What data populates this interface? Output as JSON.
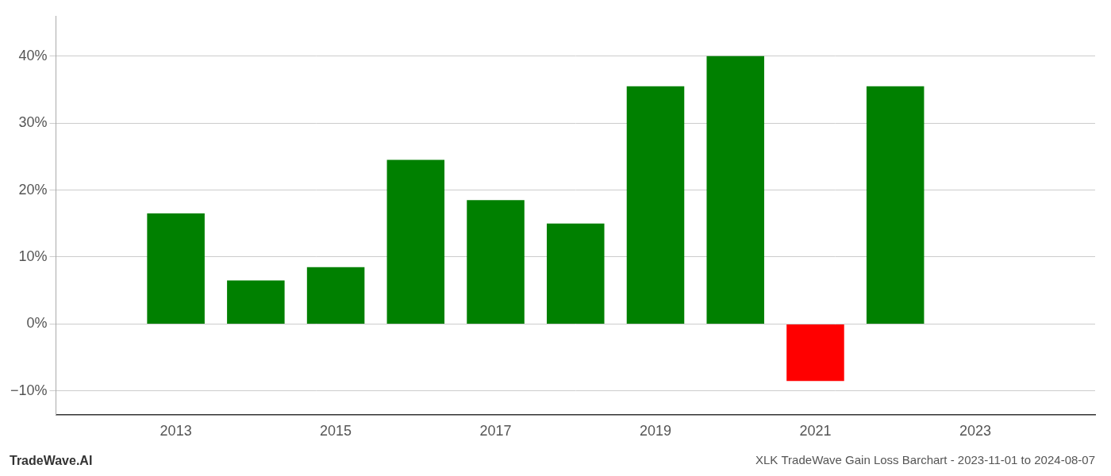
{
  "chart_data": {
    "type": "bar",
    "title": "XLK TradeWave Gain Loss Barchart - 2023-11-01 to 2024-08-07",
    "annotations": [
      "TradeWave.AI"
    ],
    "x": [
      2013,
      2014,
      2015,
      2016,
      2017,
      2018,
      2019,
      2020,
      2021,
      2022
    ],
    "values": [
      0.165,
      0.065,
      0.085,
      0.245,
      0.185,
      0.15,
      0.355,
      0.4,
      -0.085,
      0.355
    ],
    "colors": [
      "#008000",
      "#008000",
      "#008000",
      "#008000",
      "#008000",
      "#008000",
      "#008000",
      "#008000",
      "#ff0000",
      "#008000"
    ],
    "xlim": [
      2011.5,
      2024.5
    ],
    "xticks": [
      2013,
      2015,
      2017,
      2019,
      2021,
      2023
    ],
    "ylim": [
      -0.135,
      0.46
    ],
    "yticks": [
      {
        "value": -0.1,
        "label": "−10%"
      },
      {
        "value": 0.0,
        "label": "0%"
      },
      {
        "value": 0.1,
        "label": "10%"
      },
      {
        "value": 0.2,
        "label": "20%"
      },
      {
        "value": 0.3,
        "label": "30%"
      },
      {
        "value": 0.4,
        "label": "40%"
      }
    ],
    "grid": "y"
  }
}
